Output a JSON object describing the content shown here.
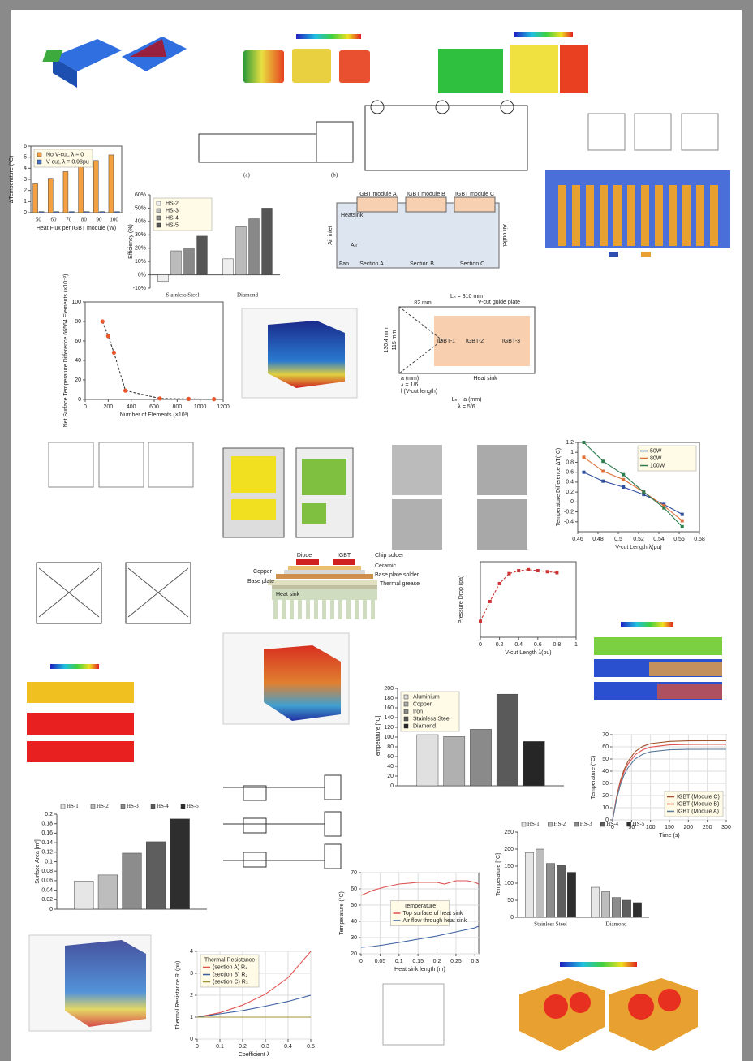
{
  "chart_data": [
    {
      "type": "bar",
      "x_label": "Heat Flux per IGBT module (W)",
      "y_label": "ΔTemperature (°C)",
      "categories": [
        "50",
        "60",
        "70",
        "80",
        "90",
        "100"
      ],
      "series": [
        {
          "name": "No V-cut, λ = 0",
          "color": "#f4a040",
          "values": [
            2.6,
            3.1,
            3.7,
            4.2,
            4.7,
            5.2
          ]
        },
        {
          "name": "V-cut, λ = 0.93pu",
          "color": "#4472c4",
          "values": [
            0.1,
            0.1,
            0.1,
            0.1,
            0.1,
            0.1
          ]
        }
      ],
      "ylim": [
        0,
        6
      ],
      "yticks": [
        0,
        1,
        2,
        3,
        4,
        5,
        6
      ],
      "legend": "upper left",
      "frame": true
    },
    {
      "type": "bar",
      "y_label": "Efficiency (%)",
      "categories": [
        "Stainless Steel",
        "Diamond"
      ],
      "series": [
        {
          "name": "HS-2",
          "color": "#eeeeee",
          "values": [
            -5,
            12
          ]
        },
        {
          "name": "HS-3",
          "color": "#bbbbbb",
          "values": [
            18,
            36
          ]
        },
        {
          "name": "HS-4",
          "color": "#888888",
          "values": [
            20,
            42
          ]
        },
        {
          "name": "HS-5",
          "color": "#555555",
          "values": [
            29,
            50
          ]
        }
      ],
      "ylim": [
        -10,
        60
      ],
      "yticks": [
        {
          "value": -10,
          "label": "-10%"
        },
        {
          "value": 0,
          "label": "0%"
        },
        {
          "value": 10,
          "label": "10%"
        },
        {
          "value": 20,
          "label": "20%"
        },
        {
          "value": 30,
          "label": "30%"
        },
        {
          "value": 40,
          "label": "40%"
        },
        {
          "value": 50,
          "label": "50%"
        },
        {
          "value": 60,
          "label": "60%"
        }
      ],
      "legend": "upper left",
      "frame": false
    },
    {
      "type": "line",
      "x_label": "Number of Elements (×10³)",
      "y_label": "Net Surface Temperature Difference 66564 Elements (×10⁻³)",
      "x": [
        150,
        200,
        250,
        350,
        650,
        900,
        1120
      ],
      "series": [
        {
          "color": "#333333",
          "marker_color": "#e8582a",
          "values": [
            80,
            65,
            48,
            9,
            1,
            0.5,
            0.3
          ]
        }
      ],
      "marker": "circle",
      "dashed": true,
      "xlim": [
        0,
        1200
      ],
      "xticks": [
        0,
        200,
        400,
        600,
        800,
        1000,
        1200
      ],
      "ylim": [
        0,
        100
      ],
      "yticks": [
        0,
        20,
        40,
        60,
        80,
        100
      ],
      "frame": true
    },
    {
      "type": "line",
      "x_label": "V-cut Length λ(pu)",
      "y_label": "Temperature Difference ΔT(°C)",
      "x": [
        0.466,
        0.485,
        0.505,
        0.525,
        0.545,
        0.563
      ],
      "series": [
        {
          "name": "50W",
          "color": "#2f4f9f",
          "values": [
            0.6,
            0.42,
            0.3,
            0.15,
            -0.05,
            -0.25
          ]
        },
        {
          "name": "80W",
          "color": "#e0703a",
          "values": [
            0.9,
            0.62,
            0.45,
            0.2,
            -0.08,
            -0.38
          ]
        },
        {
          "name": "100W",
          "color": "#2e7d4f",
          "values": [
            1.2,
            0.82,
            0.55,
            0.2,
            -0.12,
            -0.5
          ]
        }
      ],
      "marker": "square",
      "xlim": [
        0.46,
        0.58
      ],
      "xticks": [
        0.46,
        0.48,
        0.5,
        0.52,
        0.54,
        0.56,
        0.58
      ],
      "ylim": [
        -0.6,
        1.2
      ],
      "yticks": [
        -0.4,
        -0.2,
        0,
        0.2,
        0.4,
        0.6,
        0.8,
        1,
        1.2
      ],
      "legend": "upper right",
      "frame": true
    },
    {
      "type": "line",
      "x_label": "V-cut Length λ(pu)",
      "y_label": "Pressure Drop (pa)",
      "x": [
        0,
        0.1,
        0.2,
        0.3,
        0.4,
        0.5,
        0.6,
        0.7,
        0.8
      ],
      "series": [
        {
          "color": "#cc3333",
          "values": [
            18,
            28,
            37,
            42,
            43.5,
            44,
            43.5,
            43,
            42.5
          ]
        }
      ],
      "marker": "square",
      "dashed": true,
      "xlim": [
        0,
        1
      ],
      "xticks": [
        0,
        0.2,
        0.4,
        0.6,
        0.8,
        1
      ],
      "ylim": [
        10,
        48
      ],
      "frame": true
    },
    {
      "type": "bar",
      "y_label": "Temperature [°C]",
      "series": [
        {
          "name": "Aluminium",
          "color": "#e0e0e0",
          "values": [
            105
          ]
        },
        {
          "name": "Copper",
          "color": "#b0b0b0",
          "values": [
            101
          ]
        },
        {
          "name": "Iron",
          "color": "#8a8a8a",
          "values": [
            116
          ]
        },
        {
          "name": "Stainless Steel",
          "color": "#5a5a5a",
          "values": [
            188
          ]
        },
        {
          "name": "Diamond",
          "color": "#262626",
          "values": [
            91
          ]
        }
      ],
      "ylim": [
        0,
        200
      ],
      "yticks": [
        0,
        20,
        40,
        60,
        80,
        100,
        120,
        140,
        160,
        180,
        200
      ],
      "legend": "upper left",
      "frame": false
    },
    {
      "type": "line",
      "x_label": "Time (s)",
      "y_label": "Temperature (°C)",
      "x": [
        0,
        10,
        20,
        30,
        40,
        60,
        80,
        100,
        150,
        200,
        250,
        300
      ],
      "series": [
        {
          "name": "IGBT (Module C)",
          "color": "#a0522d",
          "values": [
            0,
            18.4,
            31.7,
            41.1,
            47.8,
            56.2,
            60.5,
            62.7,
            64.5,
            64.9,
            65,
            65
          ]
        },
        {
          "name": "IGBT (Module B)",
          "color": "#e05050",
          "values": [
            0,
            17.5,
            30.2,
            39.2,
            45.6,
            53.6,
            57.7,
            59.8,
            61.6,
            61.9,
            62,
            62
          ]
        },
        {
          "name": "IGBT (Module A)",
          "color": "#5a7a9a",
          "values": [
            0,
            16.4,
            28.2,
            36.7,
            42.7,
            50.2,
            54,
            55.9,
            57.6,
            57.9,
            58,
            58
          ]
        }
      ],
      "xlim": [
        0,
        300
      ],
      "xticks": [
        0,
        50,
        100,
        150,
        200,
        250,
        300
      ],
      "ylim": [
        0,
        70
      ],
      "yticks": [
        0,
        10,
        20,
        30,
        40,
        50,
        60,
        70
      ],
      "legend": "lower right",
      "grid": true,
      "frame": true
    },
    {
      "type": "bar",
      "y_label": "Surface Area [m²]",
      "series": [
        {
          "name": "HS-1",
          "color": "#e6e6e6",
          "values": [
            0.059
          ]
        },
        {
          "name": "HS-2",
          "color": "#bdbdbd",
          "values": [
            0.072
          ]
        },
        {
          "name": "HS-3",
          "color": "#8c8c8c",
          "values": [
            0.118
          ]
        },
        {
          "name": "HS-4",
          "color": "#5e5e5e",
          "values": [
            0.142
          ]
        },
        {
          "name": "HS-5",
          "color": "#2e2e2e",
          "values": [
            0.19
          ]
        }
      ],
      "ylim": [
        0,
        0.2
      ],
      "yticks": [
        0,
        0.02,
        0.04,
        0.06,
        0.08,
        0.1,
        0.12,
        0.14,
        0.16,
        0.18,
        0.2
      ],
      "legend": "top",
      "frame": false
    },
    {
      "type": "bar",
      "y_label": "Temperature [°C]",
      "categories": [
        "Stainless Steel",
        "Diamond"
      ],
      "series": [
        {
          "name": "HS-1",
          "color": "#e6e6e6",
          "values": [
            190,
            88
          ]
        },
        {
          "name": "HS-2",
          "color": "#bdbdbd",
          "values": [
            200,
            75
          ]
        },
        {
          "name": "HS-3",
          "color": "#8c8c8c",
          "values": [
            158,
            58
          ]
        },
        {
          "name": "HS-4",
          "color": "#5e5e5e",
          "values": [
            152,
            50
          ]
        },
        {
          "name": "HS-5",
          "color": "#2e2e2e",
          "values": [
            132,
            43
          ]
        }
      ],
      "ylim": [
        0,
        250
      ],
      "yticks": [
        0,
        50,
        100,
        150,
        200,
        250
      ],
      "legend": "top",
      "frame": false
    },
    {
      "type": "line",
      "x_label": "Heat sink length (m)",
      "y_label": "Temperature (°C)",
      "legend_title": "Temperature",
      "x": [
        0,
        0.03,
        0.06,
        0.1,
        0.15,
        0.2,
        0.22,
        0.25,
        0.28,
        0.3,
        0.31
      ],
      "series": [
        {
          "name": "Top surface of heat sink",
          "color": "#e05050",
          "values": [
            56,
            59,
            61,
            63,
            64,
            64,
            63,
            65,
            65,
            64,
            63
          ]
        },
        {
          "name": "Air flow through heat sink",
          "color": "#3a5fa0",
          "values": [
            24,
            24.5,
            25.5,
            27,
            29,
            31,
            32,
            33.5,
            35,
            36,
            37
          ]
        }
      ],
      "xlim": [
        0,
        0.31
      ],
      "xticks": [
        0,
        0.05,
        0.1,
        0.15,
        0.2,
        0.25,
        0.3
      ],
      "ylim": [
        20,
        70
      ],
      "yticks": [
        20,
        30,
        40,
        50,
        60,
        70
      ],
      "legend": "center",
      "grid": true,
      "frame": true
    },
    {
      "type": "line",
      "x_label": "Coefficient λ",
      "y_label": "Thermal Resistance Rᵢ (pu)",
      "legend_title": "Thermal Resistance",
      "x": [
        0,
        0.1,
        0.2,
        0.3,
        0.4,
        0.5
      ],
      "series": [
        {
          "name": "(section A) R₁",
          "color": "#e05050",
          "values": [
            1,
            1.2,
            1.55,
            2.05,
            2.8,
            4
          ]
        },
        {
          "name": "(section B) R₂",
          "color": "#3a5fa0",
          "values": [
            1,
            1.15,
            1.3,
            1.5,
            1.72,
            2
          ]
        },
        {
          "name": "(section C) R₃",
          "color": "#a09030",
          "values": [
            1,
            1,
            1,
            1,
            1,
            1
          ]
        }
      ],
      "xlim": [
        0,
        0.5
      ],
      "xticks": [
        0,
        0.1,
        0.2,
        0.3,
        0.4,
        0.5
      ],
      "ylim": [
        0,
        4
      ],
      "yticks": [
        0,
        1,
        2,
        3,
        4
      ],
      "legend": "upper left",
      "grid": true,
      "frame": true
    }
  ],
  "diagrams": {
    "captions": [
      "(a)",
      "(b)"
    ],
    "modules": {
      "titles": [
        "IGBT module A",
        "IGBT module B",
        "IGBT module C"
      ],
      "heatsink": "Heatsink",
      "air_inlet": "Air inlet",
      "air": "Air",
      "fan": "Fan",
      "sections": [
        "Section A",
        "Section B",
        "Section C"
      ],
      "air_outlet": "Air outlet"
    },
    "vcut": {
      "length": "Lₕ = 310 mm",
      "plate": "V-cut guide plate",
      "offset": "82 mm",
      "height_outer": "130.4 mm",
      "height_inner": "115 mm",
      "igbts": [
        "IGBT-1",
        "IGBT-2",
        "IGBT-3"
      ],
      "a": "a (mm)",
      "lambda_a": "λ = 1/6",
      "l": "l (V-cut length)",
      "heat_sink": "Heat sink",
      "rest": "Lₕ − a (mm)",
      "lambda_rest": "λ = 5/6"
    },
    "stack": {
      "diode": "Diode",
      "igbt": "IGBT",
      "layers": [
        "Chip solder",
        "Ceramic",
        "Base plate solder",
        "Thermal grease"
      ],
      "copper": "Copper",
      "base_plate": "Base plate",
      "heat_sink": "Heat sink"
    }
  }
}
